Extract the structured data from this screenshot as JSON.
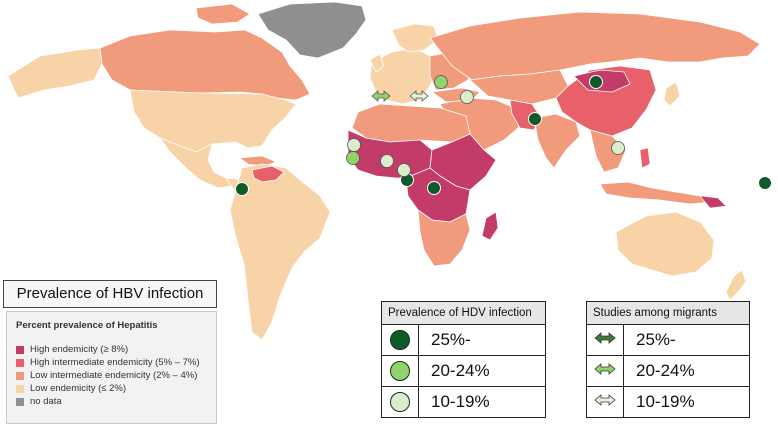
{
  "hbv_title": "Prevalence of HBV infection",
  "hbv_legend": {
    "heading": "Percent prevalence of Hepatitis",
    "items": [
      {
        "label": "High endemicity (≥ 8%)",
        "color": "#c23b69"
      },
      {
        "label": "High intermediate endemicity (5% – 7%)",
        "color": "#e8616a"
      },
      {
        "label": "Low intermediate endemicity (2% – 4%)",
        "color": "#f29a7c"
      },
      {
        "label": "Low endemicity (≤ 2%)",
        "color": "#f9d3a8"
      },
      {
        "label": "no data",
        "color": "#8f8f8f"
      }
    ]
  },
  "hdv_table": {
    "title": "Prevalence of HDV infection",
    "rows": [
      {
        "symbol": "dark-green-circle",
        "color": "#0f5a2b",
        "label": "25%-"
      },
      {
        "symbol": "green-circle",
        "color": "#8fd36a",
        "label": "20-24%"
      },
      {
        "symbol": "pale-green-circle",
        "color": "#d9eec9",
        "label": "10-19%"
      }
    ]
  },
  "migrant_table": {
    "title": "Studies among migrants",
    "rows": [
      {
        "symbol": "dark-green-arrow",
        "color": "#3c7a3c",
        "label": "25%-"
      },
      {
        "symbol": "green-arrow",
        "color": "#8fd36a",
        "label": "20-24%"
      },
      {
        "symbol": "pale-green-arrow",
        "color": "#e3f4d6",
        "label": "10-19%"
      }
    ]
  },
  "colors": {
    "sea": "#ffffff",
    "border": "#ffffff"
  }
}
